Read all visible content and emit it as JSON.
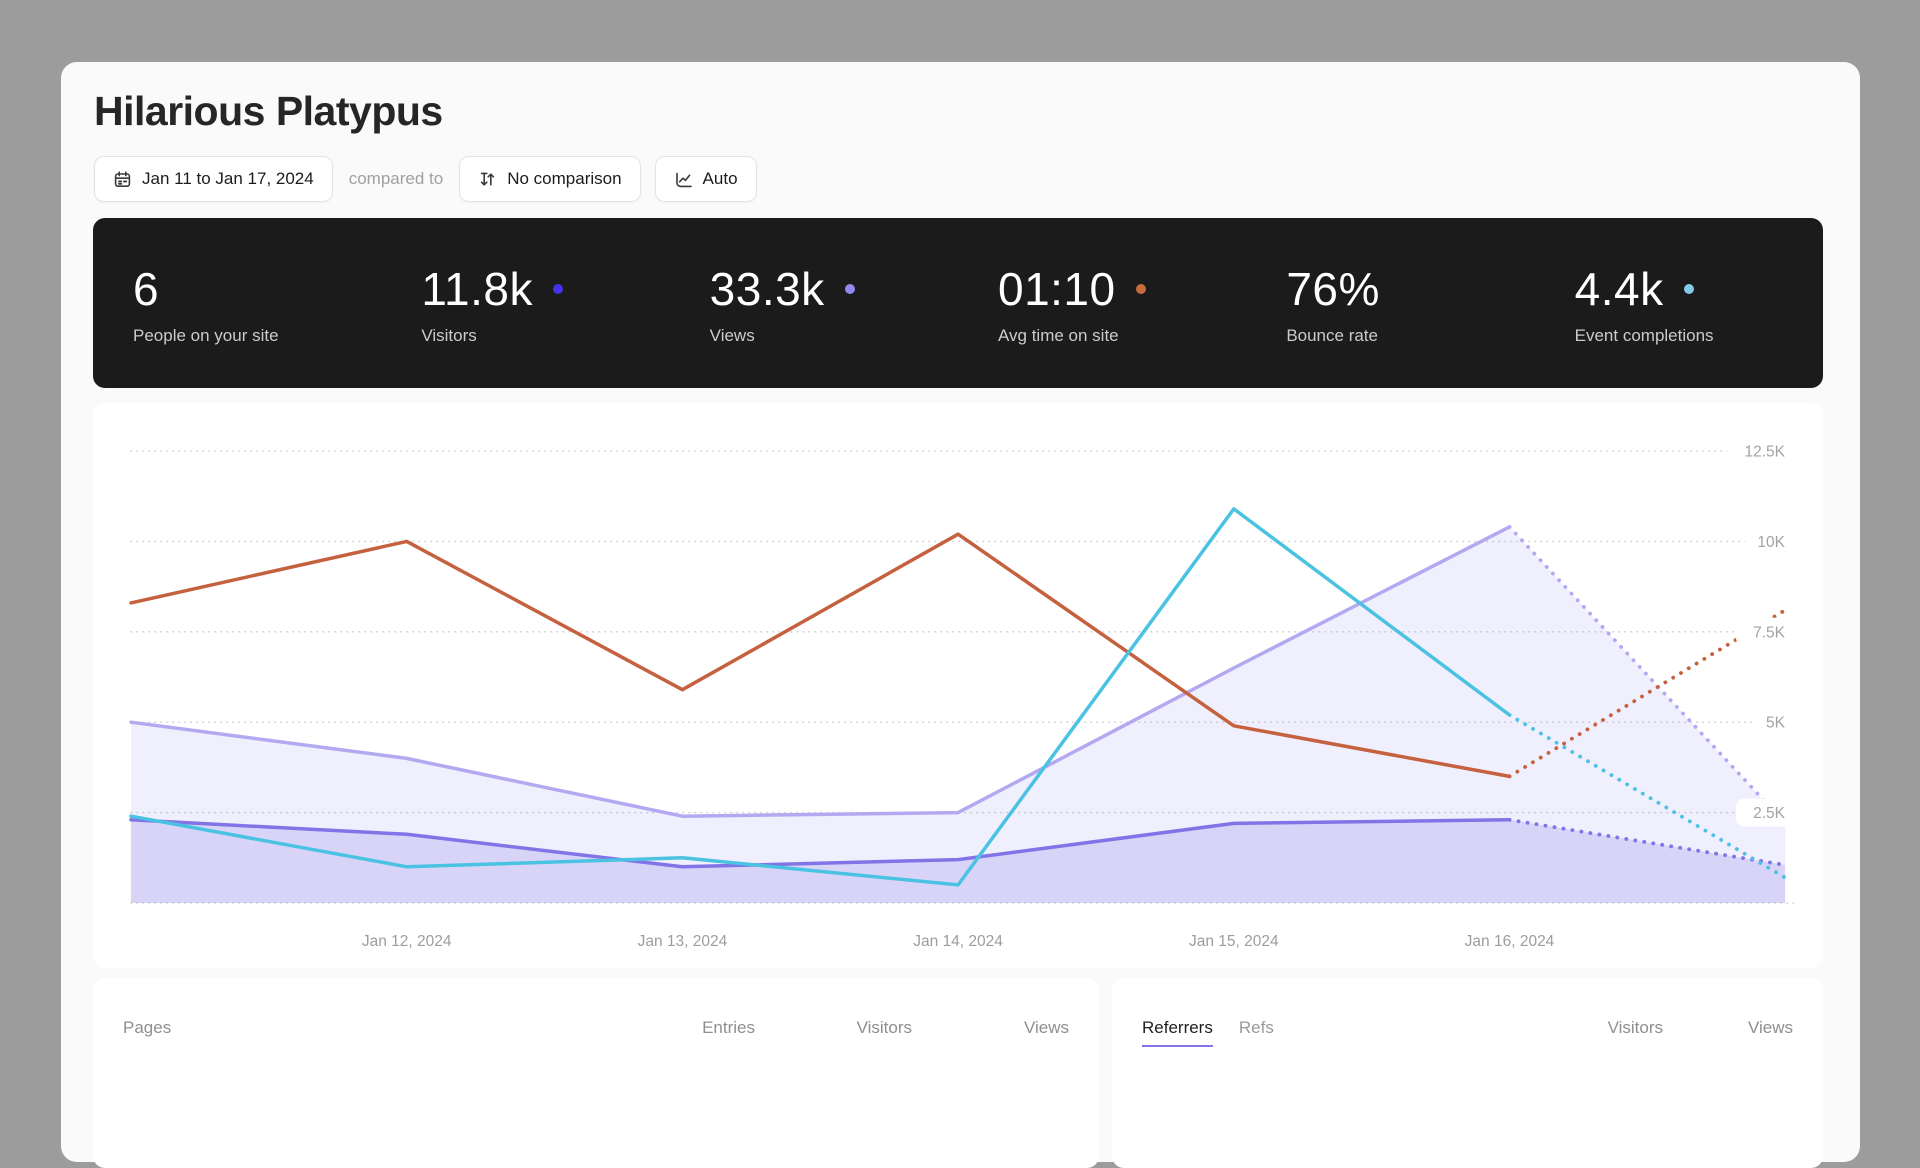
{
  "page": {
    "title": "Hilarious Platypus"
  },
  "toolbar": {
    "date_range": "Jan 11 to Jan 17, 2024",
    "compared_to_label": "compared to",
    "comparison": "No comparison",
    "scale": "Auto"
  },
  "stats": [
    {
      "value": "6",
      "label": "People on your site",
      "dot": ""
    },
    {
      "value": "11.8k",
      "label": "Visitors",
      "dot": "#4432e8"
    },
    {
      "value": "33.3k",
      "label": "Views",
      "dot": "#9187f0"
    },
    {
      "value": "01:10",
      "label": "Avg time on site",
      "dot": "#c96a3f"
    },
    {
      "value": "76%",
      "label": "Bounce rate",
      "dot": ""
    },
    {
      "value": "4.4k",
      "label": "Event completions",
      "dot": "#83cbe8"
    }
  ],
  "chart_data": {
    "type": "line",
    "x": [
      "Jan 11, 2024",
      "Jan 12, 2024",
      "Jan 13, 2024",
      "Jan 14, 2024",
      "Jan 15, 2024",
      "Jan 16, 2024",
      "Jan 17, 2024"
    ],
    "x_tick_labels": [
      "Jan 12, 2024",
      "Jan 13, 2024",
      "Jan 14, 2024",
      "Jan 15, 2024",
      "Jan 16, 2024"
    ],
    "y_ticks": [
      2500,
      5000,
      7500,
      10000,
      12500
    ],
    "y_tick_labels": [
      "2.5K",
      "5K",
      "7.5K",
      "10K",
      "12.5K"
    ],
    "ylim": [
      0,
      12500
    ],
    "grid": "horizontal-dotted",
    "legend_position": "none",
    "projected_from_index": 5,
    "series": [
      {
        "name": "Views",
        "color": "#b3a9f1",
        "fill": "#8d80ee",
        "fill_opacity": 0.13,
        "values": [
          5000,
          4000,
          2400,
          2500,
          6500,
          10400,
          2200
        ]
      },
      {
        "name": "Visitors",
        "color": "#8174e6",
        "fill": "#8275e8",
        "fill_opacity": 0.22,
        "values": [
          2300,
          1900,
          1000,
          1200,
          2200,
          2300,
          1050
        ]
      },
      {
        "name": "Avg time on site",
        "color": "#c5613e",
        "fill": null,
        "fill_opacity": 0,
        "values": [
          8300,
          10000,
          5900,
          10200,
          4900,
          3500,
          8100
        ]
      },
      {
        "name": "Event completions",
        "color": "#4ac2e2",
        "fill": null,
        "fill_opacity": 0,
        "values": [
          2400,
          1000,
          1250,
          500,
          10900,
          5200,
          700
        ]
      }
    ]
  },
  "panels": {
    "pages": {
      "title": "Pages",
      "columns": [
        "Entries",
        "Visitors",
        "Views"
      ]
    },
    "referrers": {
      "tabs": [
        "Referrers",
        "Refs"
      ],
      "active_tab": "Referrers",
      "columns": [
        "Visitors",
        "Views"
      ]
    }
  }
}
